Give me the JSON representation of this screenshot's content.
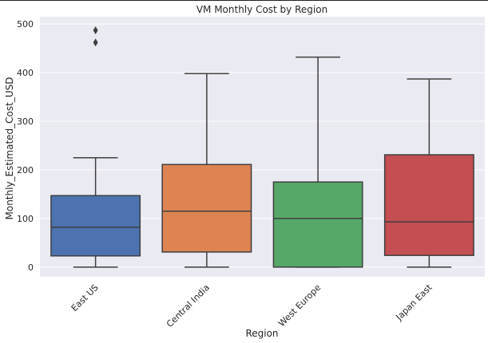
{
  "chart_data": {
    "type": "box",
    "title": "VM Monthly Cost by Region",
    "xlabel": "Region",
    "ylabel": "Monthly_Estimated_Cost_USD",
    "categories": [
      "East US",
      "Central India",
      "West Europe",
      "Japan East"
    ],
    "ylim": [
      -20,
      515
    ],
    "yticks": [
      0,
      100,
      200,
      300,
      400,
      500
    ],
    "grid": true,
    "boxes": [
      {
        "category": "East US",
        "color": "#4c72b0",
        "whisker_low": 0,
        "q1": 23,
        "median": 82,
        "q3": 147,
        "whisker_high": 225,
        "outliers": [
          462,
          487
        ]
      },
      {
        "category": "Central India",
        "color": "#dd8452",
        "whisker_low": 0,
        "q1": 31,
        "median": 115,
        "q3": 211,
        "whisker_high": 398,
        "outliers": []
      },
      {
        "category": "West Europe",
        "color": "#55a868",
        "whisker_low": 0,
        "q1": 0,
        "median": 100,
        "q3": 175,
        "whisker_high": 432,
        "outliers": []
      },
      {
        "category": "Japan East",
        "color": "#c44e52",
        "whisker_low": 0,
        "q1": 24,
        "median": 93,
        "q3": 231,
        "whisker_high": 387,
        "outliers": []
      }
    ]
  }
}
